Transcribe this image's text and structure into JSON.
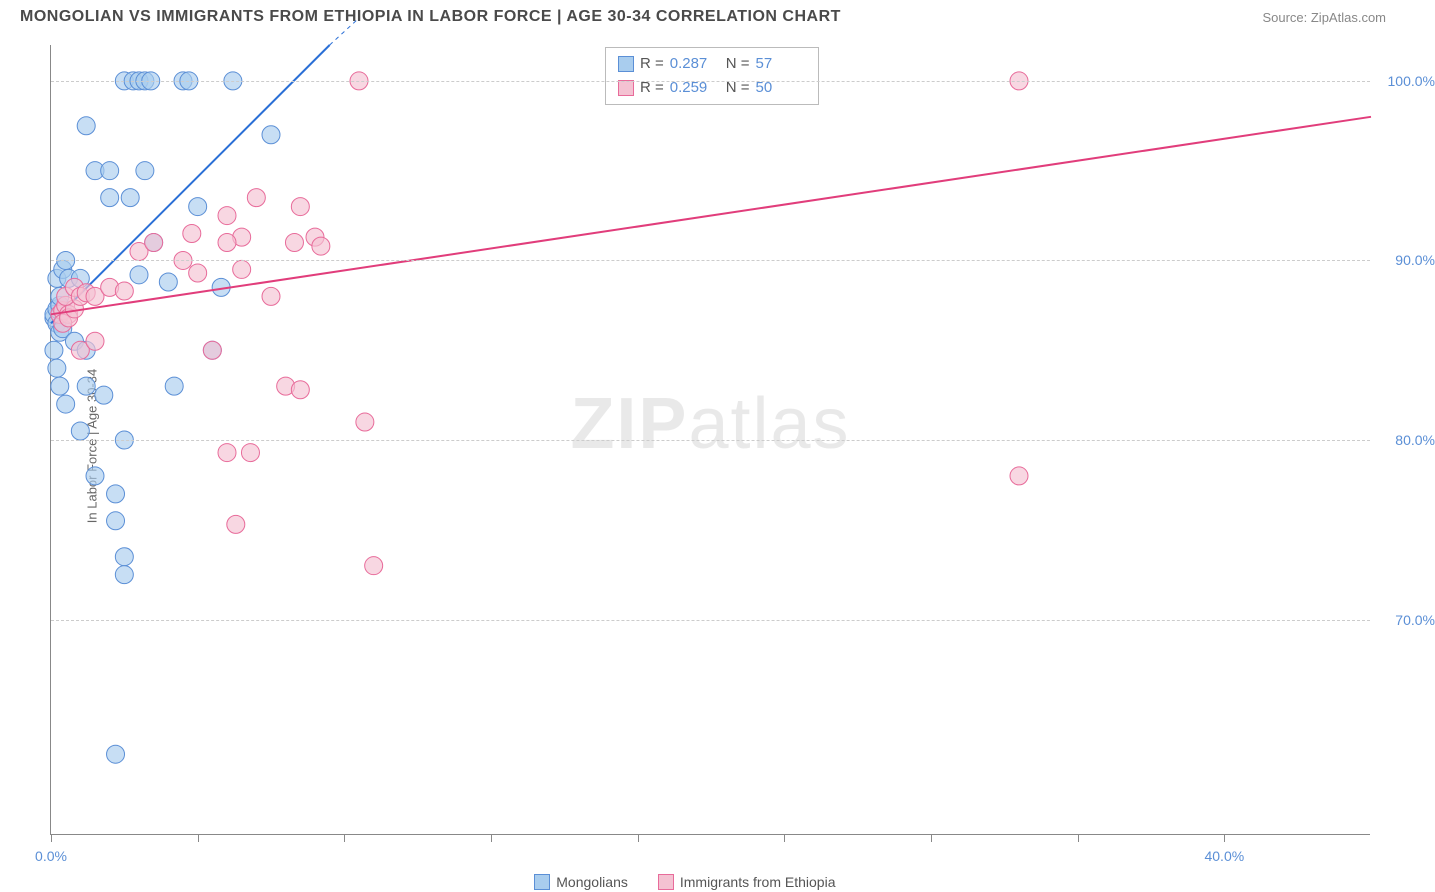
{
  "header": {
    "title": "MONGOLIAN VS IMMIGRANTS FROM ETHIOPIA IN LABOR FORCE | AGE 30-34 CORRELATION CHART",
    "source": "Source: ZipAtlas.com"
  },
  "ylabel": "In Labor Force | Age 30-34",
  "watermark": {
    "a": "ZIP",
    "b": "atlas"
  },
  "chart": {
    "type": "scatter",
    "xlim": [
      0,
      45
    ],
    "ylim": [
      58,
      102
    ],
    "xticks": [
      0,
      5,
      10,
      15,
      20,
      25,
      30,
      35,
      40
    ],
    "xtick_labels": {
      "0": "0.0%",
      "40": "40.0%"
    },
    "yticks": [
      70,
      80,
      90,
      100
    ],
    "ytick_labels": [
      "70.0%",
      "80.0%",
      "90.0%",
      "100.0%"
    ],
    "grid_color": "#cccccc",
    "background_color": "#ffffff",
    "series": [
      {
        "name": "Mongolians",
        "color_fill": "#a9cdee",
        "color_stroke": "#5b8fd6",
        "marker_radius": 9,
        "marker_opacity": 0.65,
        "R": "0.287",
        "N": "57",
        "trend": {
          "x1": 0,
          "y1": 86.5,
          "x2": 9.5,
          "y2": 102,
          "color": "#2a6fd6",
          "width": 2
        },
        "trend_dash": {
          "x1": 9.5,
          "y1": 102,
          "x2": 10.5,
          "y2": 103.5
        },
        "points": [
          [
            0.1,
            86.8
          ],
          [
            0.1,
            87.0
          ],
          [
            0.2,
            86.5
          ],
          [
            0.2,
            87.3
          ],
          [
            0.3,
            86.0
          ],
          [
            0.3,
            87.5
          ],
          [
            0.3,
            88.0
          ],
          [
            0.4,
            86.2
          ],
          [
            0.2,
            89.0
          ],
          [
            0.4,
            89.5
          ],
          [
            0.5,
            90.0
          ],
          [
            0.1,
            85.0
          ],
          [
            0.2,
            84.0
          ],
          [
            0.3,
            83.0
          ],
          [
            0.5,
            82.0
          ],
          [
            2.5,
            100.0
          ],
          [
            2.8,
            100.0
          ],
          [
            3.0,
            100.0
          ],
          [
            3.2,
            100.0
          ],
          [
            3.4,
            100.0
          ],
          [
            4.5,
            100.0
          ],
          [
            4.7,
            100.0
          ],
          [
            6.2,
            100.0
          ],
          [
            1.2,
            97.5
          ],
          [
            1.5,
            95.0
          ],
          [
            2.0,
            95.0
          ],
          [
            3.2,
            95.0
          ],
          [
            2.0,
            93.5
          ],
          [
            2.7,
            93.5
          ],
          [
            0.6,
            89.0
          ],
          [
            1.0,
            89.0
          ],
          [
            3.0,
            89.2
          ],
          [
            4.0,
            88.8
          ],
          [
            5.8,
            88.5
          ],
          [
            0.8,
            85.5
          ],
          [
            1.2,
            85.0
          ],
          [
            5.5,
            85.0
          ],
          [
            1.2,
            83.0
          ],
          [
            4.2,
            83.0
          ],
          [
            1.8,
            82.5
          ],
          [
            1.0,
            80.5
          ],
          [
            2.5,
            80.0
          ],
          [
            1.5,
            78.0
          ],
          [
            2.2,
            77.0
          ],
          [
            2.2,
            75.5
          ],
          [
            2.5,
            73.5
          ],
          [
            2.5,
            72.5
          ],
          [
            7.5,
            97.0
          ],
          [
            5.0,
            93.0
          ],
          [
            3.5,
            91.0
          ],
          [
            2.2,
            62.5
          ]
        ]
      },
      {
        "name": "Immigrants from Ethiopia",
        "color_fill": "#f4c2d2",
        "color_stroke": "#e86b9a",
        "marker_radius": 9,
        "marker_opacity": 0.65,
        "R": "0.259",
        "N": "50",
        "trend": {
          "x1": 0,
          "y1": 87.0,
          "x2": 45,
          "y2": 98.0,
          "color": "#e13d7b",
          "width": 2
        },
        "points": [
          [
            0.3,
            87.0
          ],
          [
            0.4,
            87.2
          ],
          [
            0.5,
            87.5
          ],
          [
            0.6,
            87.0
          ],
          [
            0.4,
            86.5
          ],
          [
            0.6,
            86.8
          ],
          [
            0.8,
            87.3
          ],
          [
            0.5,
            88.0
          ],
          [
            0.8,
            88.5
          ],
          [
            1.0,
            88.0
          ],
          [
            1.2,
            88.2
          ],
          [
            1.5,
            88.0
          ],
          [
            2.0,
            88.5
          ],
          [
            2.5,
            88.3
          ],
          [
            1.0,
            85.0
          ],
          [
            1.5,
            85.5
          ],
          [
            3.0,
            90.5
          ],
          [
            3.5,
            91.0
          ],
          [
            4.5,
            90.0
          ],
          [
            5.0,
            89.3
          ],
          [
            6.5,
            89.5
          ],
          [
            4.8,
            91.5
          ],
          [
            6.0,
            92.5
          ],
          [
            6.5,
            91.3
          ],
          [
            8.3,
            91.0
          ],
          [
            9.0,
            91.3
          ],
          [
            9.2,
            90.8
          ],
          [
            7.0,
            93.5
          ],
          [
            8.5,
            93.0
          ],
          [
            6.0,
            91.0
          ],
          [
            7.5,
            88.0
          ],
          [
            5.5,
            85.0
          ],
          [
            6.0,
            79.3
          ],
          [
            6.8,
            79.3
          ],
          [
            8.0,
            83.0
          ],
          [
            8.5,
            82.8
          ],
          [
            6.3,
            75.3
          ],
          [
            11.0,
            73.0
          ],
          [
            10.7,
            81.0
          ],
          [
            10.5,
            100.0
          ],
          [
            33.0,
            100.0
          ],
          [
            33.0,
            78.0
          ]
        ]
      }
    ]
  },
  "legend_bottom": [
    {
      "label": "Mongolians",
      "fill": "#a9cdee",
      "stroke": "#5b8fd6"
    },
    {
      "label": "Immigrants from Ethiopia",
      "fill": "#f4c2d2",
      "stroke": "#e86b9a"
    }
  ]
}
